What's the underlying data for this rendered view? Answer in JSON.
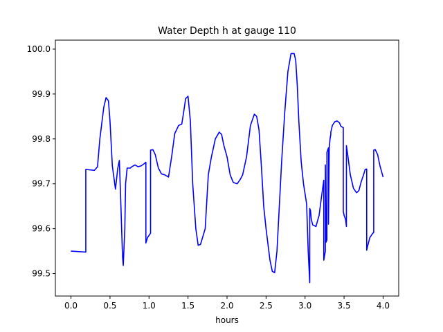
{
  "chart_data": {
    "type": "line",
    "title": "Water Depth h at gauge 110",
    "xlabel": "hours",
    "ylabel": "",
    "xlim": [
      -0.2,
      4.2
    ],
    "ylim": [
      99.45,
      100.02
    ],
    "xticks": [
      0.0,
      0.5,
      1.0,
      1.5,
      2.0,
      2.5,
      3.0,
      3.5,
      4.0
    ],
    "xtick_labels": [
      "0.0",
      "0.5",
      "1.0",
      "1.5",
      "2.0",
      "2.5",
      "3.0",
      "3.5",
      "4.0"
    ],
    "yticks": [
      99.5,
      99.6,
      99.7,
      99.8,
      99.9,
      100.0
    ],
    "ytick_labels": [
      "99.5",
      "99.6",
      "99.7",
      "99.8",
      "99.9",
      "100.0"
    ],
    "grid": false,
    "series": [
      {
        "color": "#0000ff",
        "x": [
          0.0,
          0.19,
          0.19,
          0.3,
          0.34,
          0.37,
          0.42,
          0.45,
          0.48,
          0.5,
          0.53,
          0.57,
          0.6,
          0.62,
          0.64,
          0.66,
          0.67,
          0.69,
          0.7,
          0.72,
          0.76,
          0.78,
          0.82,
          0.86,
          0.9,
          0.94,
          0.96,
          0.96,
          0.98,
          1.02,
          1.02,
          1.05,
          1.08,
          1.12,
          1.16,
          1.2,
          1.25,
          1.29,
          1.33,
          1.38,
          1.42,
          1.44,
          1.47,
          1.5,
          1.53,
          1.56,
          1.6,
          1.63,
          1.66,
          1.72,
          1.76,
          1.8,
          1.85,
          1.9,
          1.93,
          1.96,
          2.0,
          2.04,
          2.08,
          2.13,
          2.17,
          2.2,
          2.25,
          2.3,
          2.35,
          2.38,
          2.41,
          2.44,
          2.47,
          2.5,
          2.55,
          2.58,
          2.61,
          2.64,
          2.67,
          2.7,
          2.74,
          2.78,
          2.82,
          2.86,
          2.88,
          2.9,
          2.92,
          2.95,
          2.98,
          3.02,
          3.04,
          3.06,
          3.06,
          3.07,
          3.08,
          3.1,
          3.14,
          3.18,
          3.21,
          3.24,
          3.24,
          3.25,
          3.26,
          3.26,
          3.27,
          3.28,
          3.28,
          3.3,
          3.3,
          3.31,
          3.32,
          3.33,
          3.33,
          3.35,
          3.38,
          3.41,
          3.44,
          3.46,
          3.48,
          3.49,
          3.49,
          3.5,
          3.52,
          3.53,
          3.53,
          3.55,
          3.58,
          3.62,
          3.66,
          3.69,
          3.72,
          3.75,
          3.77,
          3.79,
          3.79,
          3.8,
          3.83,
          3.86,
          3.88,
          3.88,
          3.9,
          3.93,
          3.96,
          4.0
        ],
        "y": [
          99.55,
          99.548,
          99.732,
          99.73,
          99.738,
          99.8,
          99.87,
          99.892,
          99.885,
          99.84,
          99.74,
          99.688,
          99.735,
          99.752,
          99.65,
          99.54,
          99.518,
          99.6,
          99.7,
          99.735,
          99.735,
          99.738,
          99.742,
          99.738,
          99.74,
          99.745,
          99.748,
          99.568,
          99.58,
          99.59,
          99.775,
          99.776,
          99.765,
          99.735,
          99.722,
          99.72,
          99.715,
          99.76,
          99.812,
          99.83,
          99.833,
          99.855,
          99.89,
          99.895,
          99.84,
          99.7,
          99.6,
          99.563,
          99.565,
          99.6,
          99.72,
          99.76,
          99.8,
          99.815,
          99.81,
          99.785,
          99.76,
          99.72,
          99.703,
          99.7,
          99.71,
          99.72,
          99.76,
          99.83,
          99.855,
          99.85,
          99.82,
          99.74,
          99.65,
          99.6,
          99.53,
          99.505,
          99.502,
          99.55,
          99.65,
          99.75,
          99.86,
          99.95,
          99.99,
          99.99,
          99.975,
          99.92,
          99.84,
          99.75,
          99.7,
          99.655,
          99.55,
          99.48,
          99.645,
          99.64,
          99.62,
          99.608,
          99.605,
          99.63,
          99.67,
          99.708,
          99.53,
          99.54,
          99.55,
          99.742,
          99.57,
          99.575,
          99.77,
          99.78,
          99.61,
          99.78,
          99.8,
          99.81,
          99.815,
          99.83,
          99.838,
          99.84,
          99.836,
          99.828,
          99.826,
          99.825,
          99.638,
          99.63,
          99.62,
          99.605,
          99.785,
          99.76,
          99.72,
          99.69,
          99.68,
          99.685,
          99.705,
          99.72,
          99.732,
          99.733,
          99.552,
          99.56,
          99.58,
          99.588,
          99.592,
          99.775,
          99.776,
          99.765,
          99.74,
          99.715
        ]
      }
    ]
  }
}
